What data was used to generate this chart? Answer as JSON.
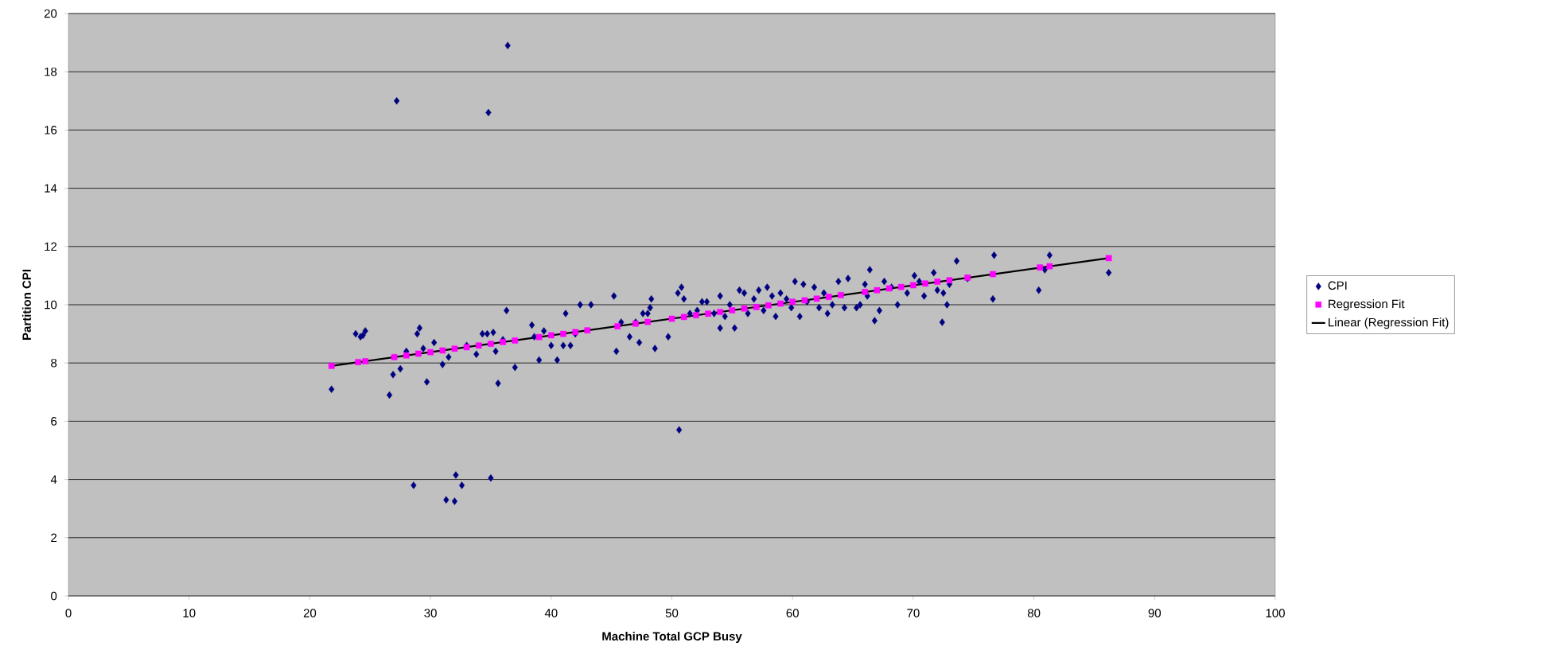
{
  "chart_data": {
    "type": "scatter",
    "xlabel": "Machine Total GCP Busy",
    "ylabel": "Partition CPI",
    "xlim": [
      0,
      100
    ],
    "ylim": [
      0,
      20
    ],
    "xticks": [
      0,
      10,
      20,
      30,
      40,
      50,
      60,
      70,
      80,
      90,
      100
    ],
    "yticks": [
      0,
      2,
      4,
      6,
      8,
      10,
      12,
      14,
      16,
      18,
      20
    ],
    "grid": "y",
    "legend": "right",
    "series": [
      {
        "name": "CPI",
        "type": "scatter",
        "marker": "diamond",
        "color": "#000080",
        "x": [
          21.8,
          23.8,
          24.2,
          24.6,
          24.4,
          26.6,
          26.9,
          27.2,
          27.5,
          28.0,
          28.6,
          28.9,
          29.1,
          29.4,
          29.7,
          30.3,
          31.0,
          31.3,
          31.5,
          32.0,
          32.1,
          32.6,
          33.0,
          33.8,
          34.3,
          34.8,
          34.7,
          35.0,
          35.2,
          35.4,
          35.6,
          36.0,
          36.4,
          36.3,
          37.0,
          38.4,
          38.6,
          39.0,
          39.4,
          40.0,
          40.5,
          41.0,
          41.2,
          41.6,
          42.0,
          42.4,
          43.3,
          45.2,
          45.4,
          45.8,
          46.5,
          47.0,
          47.3,
          47.6,
          48.2,
          48.3,
          48.0,
          48.6,
          49.7,
          50.6,
          50.5,
          50.8,
          51.0,
          51.5,
          52.1,
          52.5,
          52.9,
          53.5,
          54.0,
          54.0,
          54.4,
          54.8,
          55.2,
          55.6,
          56.0,
          56.3,
          56.8,
          57.2,
          57.6,
          57.9,
          58.3,
          58.6,
          59.0,
          59.5,
          59.9,
          60.2,
          60.6,
          60.9,
          61.2,
          61.8,
          62.2,
          62.6,
          62.9,
          63.3,
          63.8,
          64.3,
          64.6,
          65.3,
          65.6,
          66.0,
          66.2,
          66.4,
          66.8,
          67.2,
          67.6,
          68.2,
          68.7,
          69.5,
          70.1,
          70.5,
          70.9,
          71.7,
          72.0,
          72.4,
          72.5,
          72.8,
          73.0,
          73.6,
          74.5,
          76.6,
          76.7,
          80.4,
          80.9,
          81.3,
          86.2
        ],
        "values": [
          7.1,
          9.0,
          8.9,
          9.1,
          8.95,
          6.9,
          7.6,
          17.0,
          7.8,
          8.4,
          3.8,
          9.0,
          9.2,
          8.5,
          7.35,
          8.7,
          7.95,
          3.3,
          8.2,
          3.25,
          4.15,
          3.8,
          8.6,
          8.3,
          9.0,
          16.6,
          9.0,
          4.05,
          9.05,
          8.4,
          7.3,
          8.8,
          18.9,
          9.8,
          7.85,
          9.3,
          8.9,
          8.1,
          9.1,
          8.6,
          8.1,
          8.6,
          9.7,
          8.6,
          9.0,
          10.0,
          10.0,
          10.3,
          8.4,
          9.4,
          8.9,
          9.4,
          8.7,
          9.7,
          9.9,
          10.2,
          9.7,
          8.5,
          8.9,
          5.7,
          10.4,
          10.6,
          10.2,
          9.7,
          9.8,
          10.1,
          10.1,
          9.7,
          10.3,
          9.2,
          9.6,
          10.0,
          9.2,
          10.5,
          10.4,
          9.7,
          10.2,
          10.5,
          9.8,
          10.6,
          10.3,
          9.6,
          10.4,
          10.2,
          9.9,
          10.8,
          9.6,
          10.7,
          10.1,
          10.6,
          9.9,
          10.4,
          9.7,
          10.0,
          10.8,
          9.9,
          10.9,
          9.9,
          10.0,
          10.7,
          10.3,
          11.2,
          9.45,
          9.8,
          10.8,
          10.6,
          10.0,
          10.4,
          11.0,
          10.8,
          10.3,
          11.1,
          10.5,
          9.4,
          10.4,
          10.0,
          10.7,
          11.5,
          10.9,
          10.2,
          11.7,
          10.5,
          11.2,
          11.7,
          11.1
        ]
      },
      {
        "name": "Regression Fit",
        "type": "scatter",
        "marker": "square",
        "color": "#ff00ff",
        "x": [
          21.8,
          24,
          24.6,
          27,
          28,
          29,
          30,
          31,
          32,
          33,
          34,
          35,
          36,
          37,
          39,
          40,
          41,
          42,
          43,
          45.5,
          47,
          48,
          50,
          51,
          52,
          53,
          54,
          55,
          56,
          57,
          58,
          59,
          60,
          61,
          62,
          63,
          64,
          66,
          67,
          68,
          69,
          70,
          71,
          72,
          73,
          74.5,
          76.6,
          80.5,
          81.3,
          86.2
        ],
        "values": [
          7.9,
          8.03,
          8.06,
          8.2,
          8.26,
          8.32,
          8.37,
          8.43,
          8.49,
          8.54,
          8.6,
          8.66,
          8.72,
          8.77,
          8.89,
          8.95,
          9.0,
          9.06,
          9.12,
          9.26,
          9.35,
          9.41,
          9.52,
          9.58,
          9.64,
          9.69,
          9.75,
          9.81,
          9.87,
          9.92,
          9.98,
          10.04,
          10.1,
          10.15,
          10.21,
          10.27,
          10.33,
          10.44,
          10.5,
          10.56,
          10.61,
          10.67,
          10.73,
          10.79,
          10.84,
          10.93,
          11.05,
          11.28,
          11.32,
          11.6
        ]
      },
      {
        "name": "Linear (Regression Fit)",
        "type": "line",
        "marker": "none",
        "line_style": "solid",
        "color": "#000000",
        "x": [
          21.8,
          86.2
        ],
        "values": [
          7.9,
          11.6
        ]
      }
    ]
  }
}
